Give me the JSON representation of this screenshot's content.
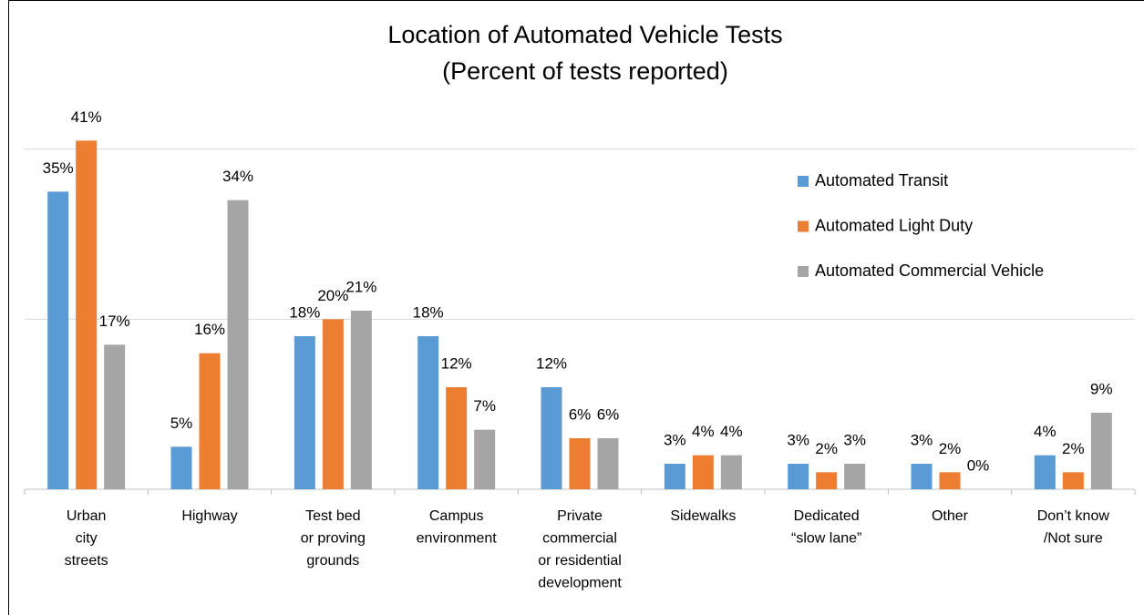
{
  "chart_data": {
    "type": "bar",
    "title": [
      "Location of Automated Vehicle Tests",
      "(Percent of tests reported)"
    ],
    "categories": [
      [
        "Urban",
        "city",
        "streets"
      ],
      [
        "Highway"
      ],
      [
        "Test bed",
        "or proving",
        "grounds"
      ],
      [
        "Campus",
        "environment"
      ],
      [
        "Private",
        "commercial",
        "or residential",
        "development"
      ],
      [
        "Sidewalks"
      ],
      [
        "Dedicated",
        "“slow lane”"
      ],
      [
        "Other"
      ],
      [
        "Don’t know",
        "/Not sure"
      ]
    ],
    "series": [
      {
        "name": "Automated Transit",
        "color": "#5b9bd5",
        "values": [
          35,
          5,
          18,
          18,
          12,
          3,
          3,
          3,
          4
        ],
        "value_labels": [
          "35%",
          "5%",
          "18%",
          "18%",
          "12%",
          "3%",
          "3%",
          "3%",
          "4%"
        ]
      },
      {
        "name": "Automated Light Duty",
        "color": "#ed7d31",
        "values": [
          41,
          16,
          20,
          12,
          6,
          4,
          2,
          2,
          2
        ],
        "value_labels": [
          "41%",
          "16%",
          "20%",
          "12%",
          "6%",
          "4%",
          "2%",
          "2%",
          "2%"
        ]
      },
      {
        "name": "Automated Commercial Vehicle",
        "color": "#a5a5a5",
        "values": [
          17,
          34,
          21,
          7,
          6,
          4,
          3,
          0,
          9
        ],
        "value_labels": [
          "17%",
          "34%",
          "21%",
          "7%",
          "6%",
          "4%",
          "3%",
          "0%",
          "9%"
        ]
      }
    ],
    "ylim": [
      0,
      45
    ],
    "yticks": [
      0,
      20,
      40
    ],
    "show_ytick_labels": false,
    "grid": true,
    "legend": "upper right"
  }
}
